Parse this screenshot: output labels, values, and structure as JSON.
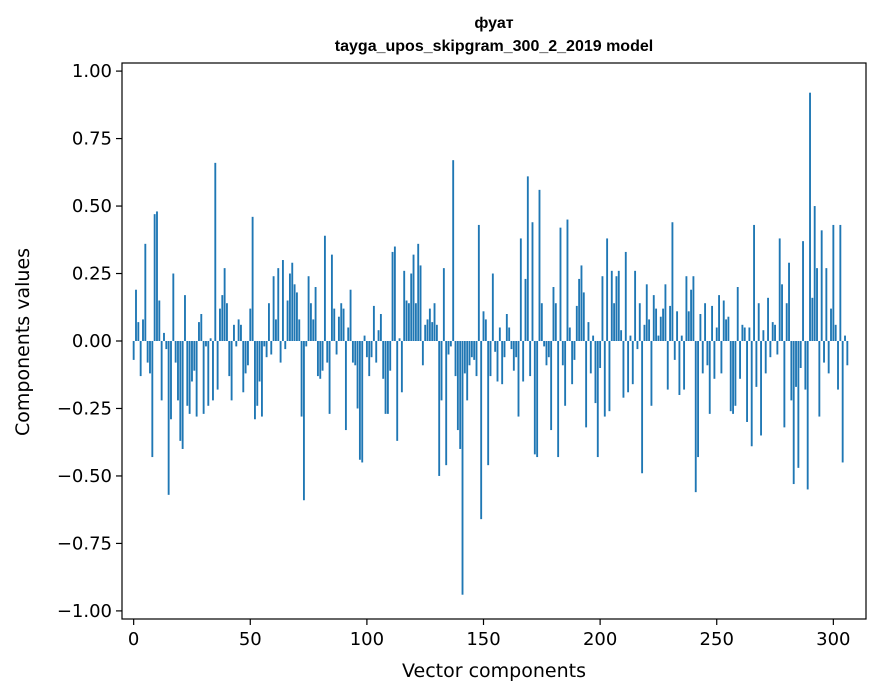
{
  "chart_data": {
    "type": "bar",
    "title": "фуат",
    "subtitle": "tayga_upos_skipgram_300_2_2019 model",
    "xlabel": "Vector components",
    "ylabel": "Components values",
    "bar_color": "#1f77b4",
    "xlim": [
      -5,
      314
    ],
    "ylim": [
      -1.03,
      1.03
    ],
    "xticks": [
      0,
      50,
      100,
      150,
      200,
      250,
      300
    ],
    "xtick_labels": [
      "0",
      "50",
      "100",
      "150",
      "200",
      "250",
      "300"
    ],
    "yticks": [
      1.0,
      0.75,
      0.5,
      0.25,
      0.0,
      -0.25,
      -0.5,
      -0.75,
      -1.0
    ],
    "ytick_labels": [
      "1.00",
      "0.75",
      "0.50",
      "0.25",
      "0.00",
      "−0.25",
      "−0.50",
      "−0.75",
      "−1.00"
    ],
    "values": [
      -0.07,
      0.19,
      0.07,
      -0.13,
      0.08,
      0.36,
      -0.08,
      -0.12,
      -0.43,
      0.47,
      0.48,
      0.15,
      -0.22,
      0.03,
      -0.03,
      -0.57,
      -0.29,
      0.25,
      -0.08,
      -0.22,
      -0.37,
      -0.4,
      0.17,
      -0.24,
      -0.27,
      -0.15,
      -0.11,
      -0.28,
      0.07,
      0.1,
      -0.27,
      -0.02,
      -0.24,
      0.01,
      -0.22,
      0.66,
      -0.18,
      0.12,
      0.17,
      0.27,
      0.14,
      -0.13,
      -0.22,
      0.06,
      -0.02,
      0.08,
      0.06,
      -0.19,
      -0.12,
      -0.09,
      0.12,
      0.46,
      -0.29,
      -0.24,
      -0.15,
      -0.28,
      -0.02,
      -0.06,
      0.14,
      -0.05,
      0.24,
      0.08,
      0.27,
      -0.08,
      0.3,
      -0.03,
      0.15,
      0.25,
      0.29,
      0.21,
      0.18,
      0.08,
      -0.28,
      -0.59,
      -0.02,
      0.24,
      0.14,
      0.08,
      0.2,
      -0.13,
      -0.14,
      -0.11,
      0.39,
      -0.08,
      -0.27,
      0.32,
      0.12,
      -0.05,
      0.09,
      0.14,
      0.12,
      -0.33,
      0.05,
      0.19,
      -0.08,
      -0.09,
      -0.25,
      -0.44,
      -0.45,
      0.02,
      -0.06,
      -0.13,
      -0.06,
      0.13,
      -0.08,
      0.04,
      0.1,
      -0.14,
      -0.27,
      -0.27,
      -0.11,
      0.33,
      0.35,
      -0.37,
      0.01,
      -0.19,
      0.26,
      0.15,
      0.14,
      0.25,
      0.32,
      0.14,
      0.36,
      0.28,
      -0.09,
      0.06,
      0.08,
      0.12,
      0.07,
      0.14,
      0.06,
      -0.5,
      -0.22,
      0.27,
      -0.46,
      -0.05,
      -0.02,
      0.67,
      -0.13,
      -0.33,
      -0.4,
      -0.94,
      -0.12,
      -0.22,
      -0.09,
      -0.06,
      -0.07,
      -0.13,
      0.43,
      -0.66,
      0.11,
      0.08,
      -0.46,
      -0.13,
      0.25,
      -0.04,
      -0.15,
      0.05,
      -0.16,
      -0.06,
      0.1,
      0.05,
      -0.03,
      -0.11,
      -0.06,
      -0.28,
      0.38,
      -0.15,
      0.23,
      0.61,
      -0.13,
      0.44,
      -0.42,
      -0.43,
      0.56,
      0.14,
      -0.02,
      -0.09,
      -0.06,
      -0.33,
      0.2,
      0.14,
      -0.43,
      0.42,
      -0.09,
      -0.24,
      0.45,
      0.05,
      -0.16,
      -0.07,
      0.13,
      0.23,
      0.28,
      0.18,
      -0.32,
      0.07,
      -0.12,
      0.02,
      -0.23,
      -0.43,
      -0.1,
      0.24,
      -0.28,
      0.38,
      -0.26,
      0.26,
      0.14,
      0.24,
      0.26,
      0.04,
      -0.21,
      0.33,
      -0.19,
      0.02,
      -0.16,
      0.26,
      -0.03,
      0.14,
      -0.49,
      0.06,
      0.21,
      0.08,
      -0.24,
      0.17,
      0.12,
      0.02,
      0.09,
      0.12,
      0.21,
      -0.18,
      0.13,
      0.44,
      -0.07,
      0.11,
      -0.2,
      0.02,
      -0.18,
      0.24,
      0.11,
      0.19,
      0.24,
      -0.56,
      -0.43,
      0.1,
      -0.12,
      0.14,
      -0.09,
      -0.27,
      0.13,
      -0.14,
      0.05,
      0.17,
      -0.12,
      0.15,
      0.08,
      0.09,
      -0.26,
      -0.27,
      -0.24,
      0.2,
      -0.14,
      0.06,
      0.05,
      -0.3,
      0.05,
      -0.39,
      0.43,
      -0.17,
      0.14,
      -0.35,
      0.04,
      -0.12,
      0.16,
      -0.06,
      0.07,
      0.06,
      -0.05,
      0.38,
      0.21,
      -0.32,
      0.14,
      0.29,
      -0.22,
      -0.53,
      -0.17,
      -0.47,
      -0.1,
      0.37,
      -0.18,
      -0.55,
      0.92,
      0.16,
      0.5,
      0.27,
      -0.28,
      0.41,
      -0.08,
      0.27,
      -0.12,
      0.12,
      0.43,
      0.06,
      -0.18,
      0.43,
      -0.45,
      0.02,
      -0.09
    ]
  }
}
